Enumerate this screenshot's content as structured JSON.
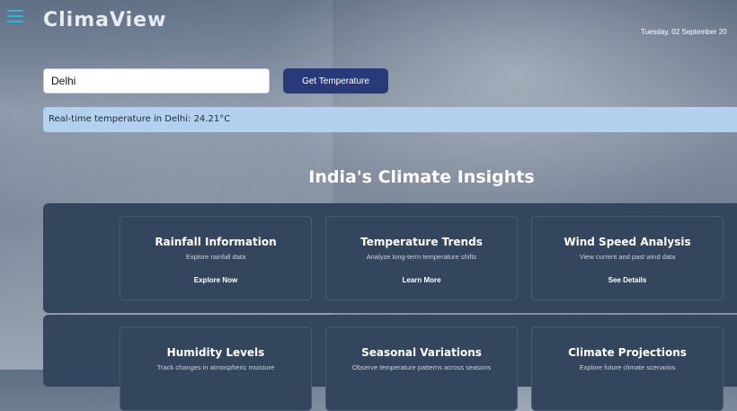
{
  "header": {
    "logo": "ClimaView",
    "date": "Tuesday, 02 September 20"
  },
  "search": {
    "value": "Delhi",
    "placeholder": "",
    "button_label": "Get Temperature"
  },
  "temperature_banner": "Real-time temperature in Delhi: 24.21°C",
  "section": {
    "title": "India's Climate Insights"
  },
  "cards": [
    {
      "title": "Rainfall Information",
      "desc": "Explore rainfall data",
      "link": "Explore Now"
    },
    {
      "title": "Temperature Trends",
      "desc": "Analyze long-term temperature shifts",
      "link": "Learn More"
    },
    {
      "title": "Wind Speed Analysis",
      "desc": "View current and past wind data",
      "link": "See Details"
    },
    {
      "title": "Humidity Levels",
      "desc": "Track changes in atmospheric moisture",
      "link": ""
    },
    {
      "title": "Seasonal Variations",
      "desc": "Observe temperature patterns across seasons",
      "link": ""
    },
    {
      "title": "Climate Projections",
      "desc": "Explore future climate scenarios",
      "link": ""
    }
  ],
  "colors": {
    "accent": "#2ab7e6",
    "button": "#283a7a",
    "banner": "#b3d0ee",
    "panel": "#34465d"
  },
  "icons": {
    "menu": "hamburger-menu-icon"
  }
}
